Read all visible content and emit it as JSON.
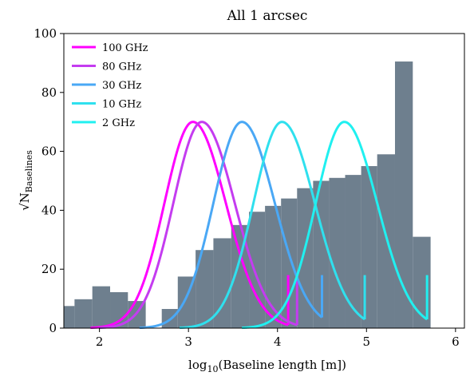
{
  "chart_data": {
    "type": "bar",
    "title": "All 1 arcsec",
    "xlabel": "log10(Baseline length [m])",
    "ylabel": "√N_Baselines",
    "xlim": [
      1.6,
      6.1
    ],
    "ylim": [
      0,
      100
    ],
    "xticks": [
      2,
      3,
      4,
      5,
      6
    ],
    "yticks": [
      0,
      20,
      40,
      60,
      80,
      100
    ],
    "legend_position": "top-left",
    "histogram": {
      "color": "#6e7f8e",
      "bins": [
        {
          "x0": 1.6,
          "x1": 1.72,
          "value": 7.5
        },
        {
          "x0": 1.72,
          "x1": 1.92,
          "value": 9.8
        },
        {
          "x0": 1.92,
          "x1": 2.12,
          "value": 14.2
        },
        {
          "x0": 2.12,
          "x1": 2.32,
          "value": 12.2
        },
        {
          "x0": 2.32,
          "x1": 2.52,
          "value": 9.2
        },
        {
          "x0": 2.7,
          "x1": 2.88,
          "value": 6.5
        },
        {
          "x0": 2.88,
          "x1": 3.08,
          "value": 17.5
        },
        {
          "x0": 3.08,
          "x1": 3.28,
          "value": 26.5
        },
        {
          "x0": 3.28,
          "x1": 3.48,
          "value": 30.5
        },
        {
          "x0": 3.48,
          "x1": 3.68,
          "value": 35.0
        },
        {
          "x0": 3.68,
          "x1": 3.86,
          "value": 39.5
        },
        {
          "x0": 3.86,
          "x1": 4.04,
          "value": 41.5
        },
        {
          "x0": 4.04,
          "x1": 4.22,
          "value": 44.0
        },
        {
          "x0": 4.22,
          "x1": 4.4,
          "value": 47.5
        },
        {
          "x0": 4.4,
          "x1": 4.58,
          "value": 50.0
        },
        {
          "x0": 4.58,
          "x1": 4.76,
          "value": 51.0
        },
        {
          "x0": 4.76,
          "x1": 4.94,
          "value": 52.0
        },
        {
          "x0": 4.94,
          "x1": 5.12,
          "value": 55.0
        },
        {
          "x0": 5.12,
          "x1": 5.32,
          "value": 59.0
        },
        {
          "x0": 5.32,
          "x1": 5.52,
          "value": 90.5
        },
        {
          "x0": 5.52,
          "x1": 5.72,
          "value": 31.0
        }
      ]
    },
    "series": [
      {
        "name": "100 GHz",
        "color": "#ff00ff",
        "peak_x": 3.05,
        "peak_y": 70,
        "sigma_left": 0.32,
        "sigma_right": 0.37,
        "x_start": 1.9,
        "x_end": 4.12,
        "end_tick_y": 18
      },
      {
        "name": "80 GHz",
        "color": "#c43cf0",
        "peak_x": 3.15,
        "peak_y": 70,
        "sigma_left": 0.32,
        "sigma_right": 0.37,
        "x_start": 2.0,
        "x_end": 4.22,
        "end_tick_y": 18
      },
      {
        "name": "30 GHz",
        "color": "#4aa8f5",
        "peak_x": 3.6,
        "peak_y": 70,
        "sigma_left": 0.32,
        "sigma_right": 0.37,
        "x_start": 2.45,
        "x_end": 4.5,
        "end_tick_y": 18
      },
      {
        "name": "10 GHz",
        "color": "#2fe0ee",
        "peak_x": 4.05,
        "peak_y": 70,
        "sigma_left": 0.32,
        "sigma_right": 0.37,
        "x_start": 2.9,
        "x_end": 4.98,
        "end_tick_y": 18
      },
      {
        "name": "2 GHz",
        "color": "#20f0f0",
        "peak_x": 4.75,
        "peak_y": 70,
        "sigma_left": 0.32,
        "sigma_right": 0.37,
        "x_start": 3.6,
        "x_end": 5.68,
        "end_tick_y": 18
      }
    ]
  }
}
